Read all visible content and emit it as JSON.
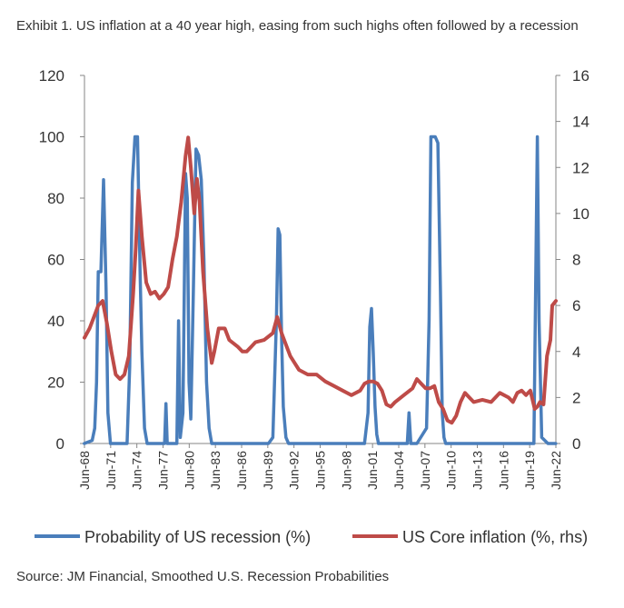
{
  "title": "Exhibit 1. US inflation at a 40 year high, easing from such highs often followed by a recession",
  "source": "Source: JM Financial, Smoothed U.S. Recession Probabilities",
  "colors": {
    "recession": "#4a7ebb",
    "inflation": "#be4b48",
    "axis": "#868686"
  },
  "chart_data": {
    "type": "line",
    "x_range": [
      1968.42,
      2022.42
    ],
    "x_ticks": [
      "Jun-68",
      "Jun-71",
      "Jun-74",
      "Jun-77",
      "Jun-80",
      "Jun-83",
      "Jun-86",
      "Jun-89",
      "Jun-92",
      "Jun-95",
      "Jun-98",
      "Jun-01",
      "Jun-04",
      "Jun-07",
      "Jun-10",
      "Jun-13",
      "Jun-16",
      "Jun-19",
      "Jun-22"
    ],
    "y_left": {
      "range": [
        0,
        120
      ],
      "ticks": [
        "0",
        "20",
        "40",
        "60",
        "80",
        "100",
        "120"
      ]
    },
    "y_right": {
      "range": [
        0,
        16
      ],
      "ticks": [
        "0",
        "2",
        "4",
        "6",
        "8",
        "10",
        "12",
        "14",
        "16"
      ]
    },
    "legend_position": "bottom",
    "series": [
      {
        "name": "Probability of US recession (%)",
        "axis": "left",
        "color": "#4a7ebb",
        "x": [
          1968.4,
          1969.3,
          1969.6,
          1969.8,
          1970.0,
          1970.3,
          1970.6,
          1970.9,
          1971.1,
          1971.4,
          1972.0,
          1973.3,
          1973.6,
          1973.9,
          1974.2,
          1974.5,
          1974.8,
          1975.0,
          1975.3,
          1975.6,
          1976.0,
          1977.0,
          1977.6,
          1977.75,
          1977.9,
          1978.5,
          1979.0,
          1979.2,
          1979.4,
          1979.7,
          1980.0,
          1980.2,
          1980.4,
          1980.6,
          1980.9,
          1981.2,
          1981.5,
          1981.8,
          1982.1,
          1982.4,
          1982.7,
          1983.0,
          1983.4,
          1984.0,
          1987.0,
          1989.5,
          1990.0,
          1990.4,
          1990.6,
          1990.8,
          1991.0,
          1991.2,
          1991.5,
          1991.8,
          1992.2,
          1995.0,
          2000.5,
          2000.9,
          2001.1,
          2001.3,
          2001.5,
          2001.7,
          2001.9,
          2002.1,
          2002.4,
          2003.0,
          2005.4,
          2005.6,
          2005.8,
          2006.5,
          2007.6,
          2007.9,
          2008.1,
          2008.3,
          2008.6,
          2008.9,
          2009.2,
          2009.4,
          2009.6,
          2009.8,
          2010.1,
          2012.0,
          2016.0,
          2019.5,
          2019.9,
          2020.1,
          2020.3,
          2020.5,
          2020.8,
          2021.5,
          2022.4
        ],
        "y": [
          0,
          1,
          5,
          20,
          56,
          56,
          86,
          50,
          10,
          0,
          0,
          0,
          25,
          85,
          100,
          100,
          55,
          30,
          5,
          0,
          0,
          0,
          0,
          13,
          0,
          0,
          0,
          40,
          2,
          10,
          88,
          80,
          20,
          8,
          50,
          96,
          94,
          86,
          60,
          20,
          5,
          0,
          0,
          0,
          0,
          0,
          2,
          40,
          70,
          68,
          35,
          12,
          2,
          0,
          0,
          0,
          0,
          10,
          38,
          44,
          30,
          12,
          3,
          0,
          0,
          0,
          0,
          10,
          0,
          0,
          5,
          40,
          100,
          100,
          100,
          98,
          50,
          10,
          2,
          0,
          0,
          0,
          0,
          0,
          0,
          50,
          100,
          40,
          2,
          0,
          0
        ]
      },
      {
        "name": "US Core inflation (%, rhs)",
        "axis": "right",
        "color": "#be4b48",
        "x": [
          1968.42,
          1969.0,
          1969.5,
          1970.0,
          1970.5,
          1971.0,
          1971.5,
          1972.0,
          1972.5,
          1973.0,
          1973.5,
          1974.0,
          1974.3,
          1974.6,
          1975.0,
          1975.5,
          1976.0,
          1976.5,
          1977.0,
          1977.5,
          1978.0,
          1978.5,
          1979.0,
          1979.5,
          1980.0,
          1980.3,
          1980.6,
          1981.0,
          1981.3,
          1981.6,
          1982.0,
          1982.5,
          1983.0,
          1983.3,
          1983.8,
          1984.5,
          1985.0,
          1986.0,
          1986.5,
          1987.0,
          1987.5,
          1988.0,
          1989.0,
          1990.0,
          1990.5,
          1991.0,
          1991.5,
          1992.0,
          1992.5,
          1993.0,
          1994.0,
          1995.0,
          1996.0,
          1997.0,
          1998.0,
          1999.0,
          2000.0,
          2000.5,
          2001.0,
          2001.5,
          2002.0,
          2002.5,
          2003.0,
          2003.5,
          2004.0,
          2005.0,
          2006.0,
          2006.5,
          2007.0,
          2007.5,
          2008.0,
          2008.5,
          2009.0,
          2009.5,
          2010.0,
          2010.5,
          2011.0,
          2011.5,
          2012.0,
          2012.5,
          2013.0,
          2014.0,
          2015.0,
          2016.0,
          2017.0,
          2017.5,
          2018.0,
          2018.5,
          2019.0,
          2019.5,
          2020.0,
          2020.3,
          2020.6,
          2021.0,
          2021.4,
          2021.8,
          2022.0,
          2022.42
        ],
        "y": [
          4.6,
          5.0,
          5.5,
          6.0,
          6.2,
          5.2,
          4.0,
          3.0,
          2.8,
          3.0,
          3.8,
          6.5,
          8.5,
          11.0,
          9.0,
          7.0,
          6.5,
          6.6,
          6.3,
          6.5,
          6.8,
          8.0,
          9.0,
          10.5,
          12.5,
          13.3,
          12.0,
          10.0,
          11.5,
          10.5,
          7.5,
          5.0,
          3.5,
          4.0,
          5.0,
          5.0,
          4.5,
          4.2,
          4.0,
          4.0,
          4.2,
          4.4,
          4.5,
          4.8,
          5.5,
          4.8,
          4.3,
          3.8,
          3.5,
          3.2,
          3.0,
          3.0,
          2.7,
          2.5,
          2.3,
          2.1,
          2.3,
          2.6,
          2.7,
          2.7,
          2.6,
          2.3,
          1.7,
          1.6,
          1.8,
          2.1,
          2.4,
          2.8,
          2.6,
          2.4,
          2.4,
          2.5,
          1.8,
          1.5,
          1.0,
          0.9,
          1.2,
          1.8,
          2.2,
          2.0,
          1.8,
          1.9,
          1.8,
          2.2,
          2.0,
          1.8,
          2.2,
          2.3,
          2.1,
          2.3,
          1.5,
          1.6,
          1.8,
          1.7,
          3.8,
          4.5,
          6.0,
          6.2
        ]
      }
    ]
  }
}
